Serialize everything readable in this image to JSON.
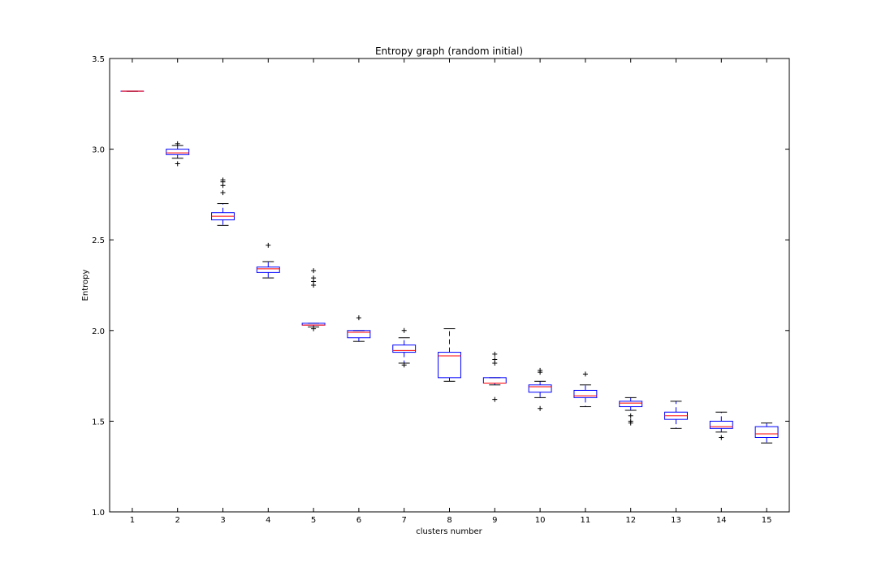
{
  "chart_data": {
    "type": "boxplot",
    "title": "Entropy graph (random initial)",
    "xlabel": "clusters number",
    "ylabel": "Entropy",
    "ylim": [
      1.0,
      3.5
    ],
    "yticks": [
      "1.0",
      "1.5",
      "2.0",
      "2.5",
      "3.0",
      "3.5"
    ],
    "categories": [
      "1",
      "2",
      "3",
      "4",
      "5",
      "6",
      "7",
      "8",
      "9",
      "10",
      "11",
      "12",
      "13",
      "14",
      "15"
    ],
    "grid": false,
    "colors": {
      "box": "#0000ff",
      "median": "#ff0000",
      "flier": "#000000",
      "axes": "#000000"
    },
    "boxes": [
      {
        "label": "1",
        "whislo": 3.32,
        "q1": 3.32,
        "med": 3.32,
        "q3": 3.32,
        "whishi": 3.32,
        "fliers": []
      },
      {
        "label": "2",
        "whislo": 2.95,
        "q1": 2.97,
        "med": 2.98,
        "q3": 3.0,
        "whishi": 3.02,
        "fliers": [
          2.92,
          3.03
        ]
      },
      {
        "label": "3",
        "whislo": 2.58,
        "q1": 2.61,
        "med": 2.63,
        "q3": 2.65,
        "whishi": 2.7,
        "fliers": [
          2.76,
          2.8,
          2.82,
          2.83
        ]
      },
      {
        "label": "4",
        "whislo": 2.29,
        "q1": 2.32,
        "med": 2.34,
        "q3": 2.35,
        "whishi": 2.38,
        "fliers": [
          2.47
        ]
      },
      {
        "label": "5",
        "whislo": 2.02,
        "q1": 2.03,
        "med": 2.03,
        "q3": 2.04,
        "whishi": 2.04,
        "fliers": [
          2.01,
          2.25,
          2.27,
          2.29,
          2.33
        ]
      },
      {
        "label": "6",
        "whislo": 1.94,
        "q1": 1.96,
        "med": 1.99,
        "q3": 2.0,
        "whishi": 2.0,
        "fliers": [
          2.07
        ]
      },
      {
        "label": "7",
        "whislo": 1.82,
        "q1": 1.88,
        "med": 1.89,
        "q3": 1.92,
        "whishi": 1.96,
        "fliers": [
          1.81,
          2.0
        ]
      },
      {
        "label": "8",
        "whislo": 1.72,
        "q1": 1.74,
        "med": 1.86,
        "q3": 1.88,
        "whishi": 2.01,
        "fliers": []
      },
      {
        "label": "9",
        "whislo": 1.7,
        "q1": 1.71,
        "med": 1.71,
        "q3": 1.74,
        "whishi": 1.74,
        "fliers": [
          1.62,
          1.82,
          1.84,
          1.87
        ]
      },
      {
        "label": "10",
        "whislo": 1.63,
        "q1": 1.66,
        "med": 1.69,
        "q3": 1.7,
        "whishi": 1.72,
        "fliers": [
          1.57,
          1.77,
          1.78
        ]
      },
      {
        "label": "11",
        "whislo": 1.58,
        "q1": 1.63,
        "med": 1.64,
        "q3": 1.67,
        "whishi": 1.7,
        "fliers": [
          1.76
        ]
      },
      {
        "label": "12",
        "whislo": 1.56,
        "q1": 1.58,
        "med": 1.6,
        "q3": 1.61,
        "whishi": 1.63,
        "fliers": [
          1.49,
          1.5,
          1.53
        ]
      },
      {
        "label": "13",
        "whislo": 1.46,
        "q1": 1.51,
        "med": 1.53,
        "q3": 1.55,
        "whishi": 1.61,
        "fliers": []
      },
      {
        "label": "14",
        "whislo": 1.44,
        "q1": 1.46,
        "med": 1.47,
        "q3": 1.5,
        "whishi": 1.55,
        "fliers": [
          1.41
        ]
      },
      {
        "label": "15",
        "whislo": 1.38,
        "q1": 1.41,
        "med": 1.43,
        "q3": 1.47,
        "whishi": 1.49,
        "fliers": []
      }
    ]
  }
}
